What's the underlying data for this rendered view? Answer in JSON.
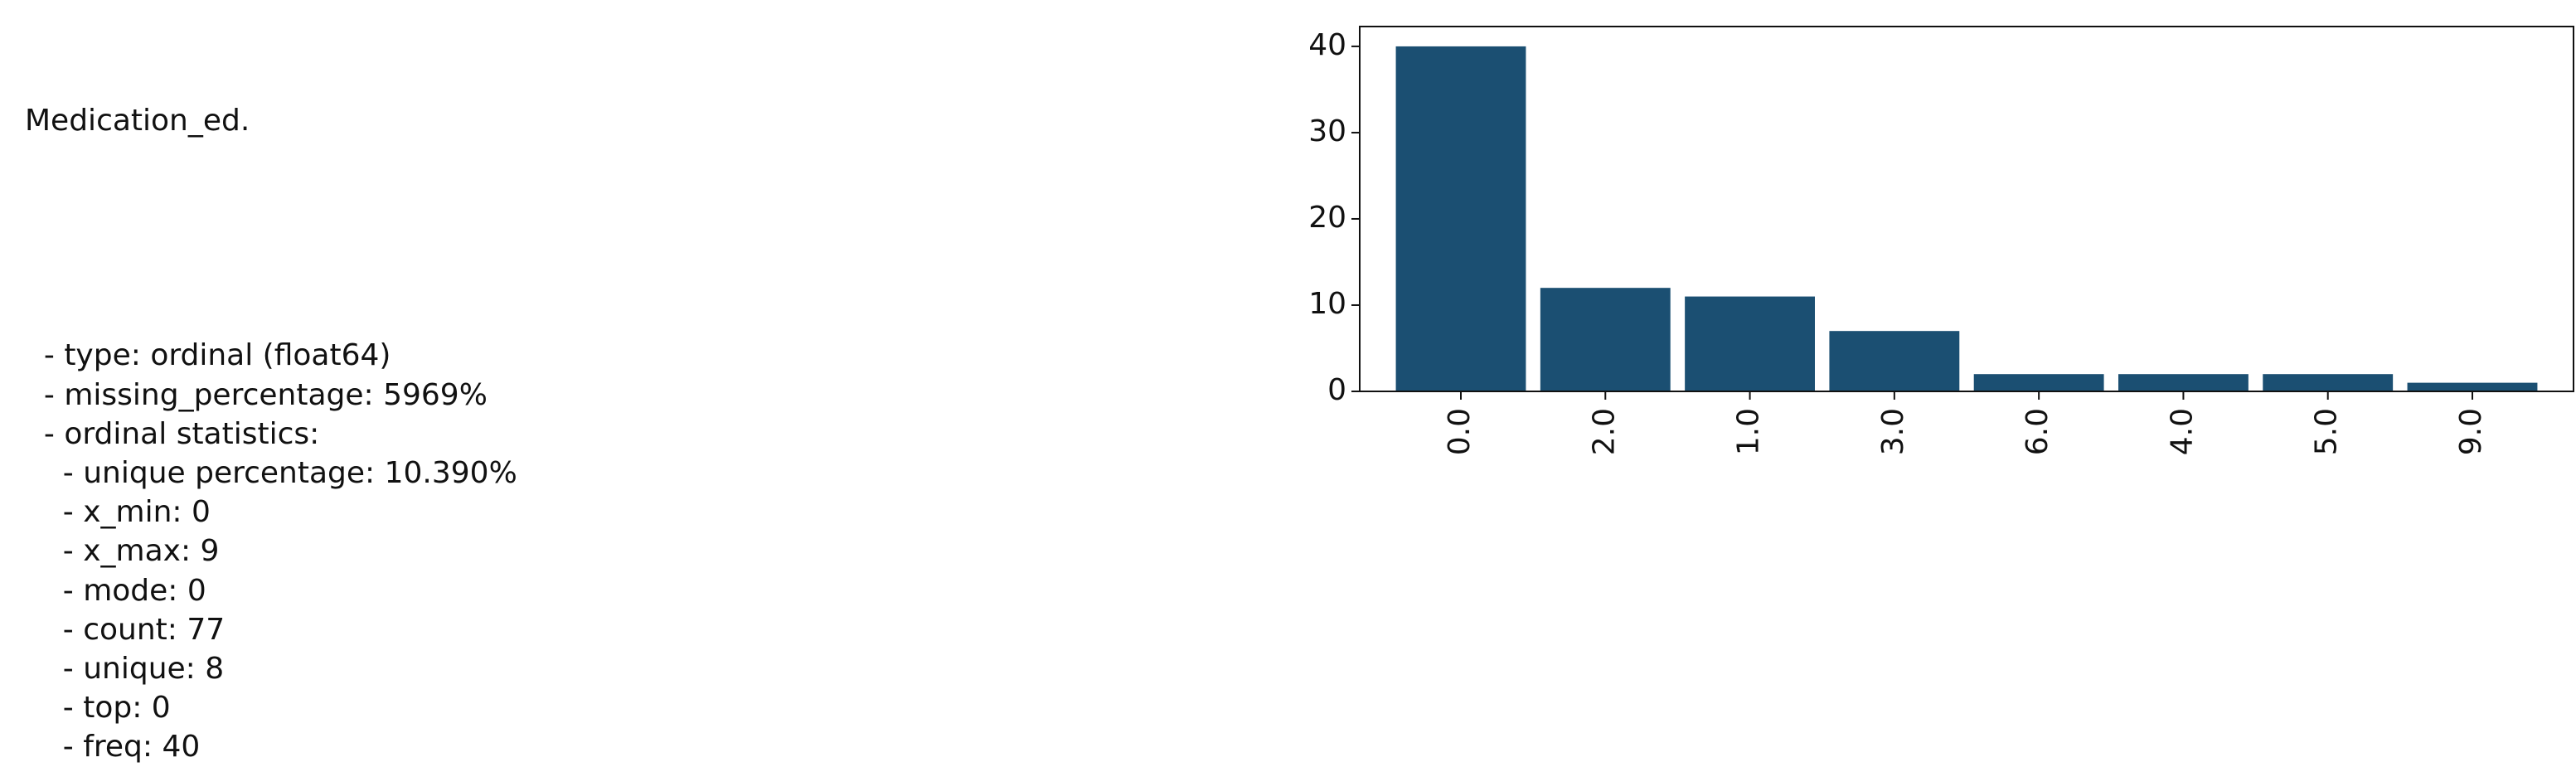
{
  "summary": {
    "title": "Medication_ed.",
    "lines": [
      "  - type: ordinal (float64)",
      "  - missing_percentage: 5969%",
      "  - ordinal statistics:",
      "    - unique percentage: 10.390%",
      "    - x_min: 0",
      "    - x_max: 9",
      "    - mode: 0",
      "    - count: 77",
      "    - unique: 8",
      "    - top: 0",
      "    - freq: 40"
    ]
  },
  "chart_data": {
    "type": "bar",
    "categories": [
      "0.0",
      "2.0",
      "1.0",
      "3.0",
      "6.0",
      "4.0",
      "5.0",
      "9.0"
    ],
    "values": [
      40,
      12,
      11,
      7,
      2,
      2,
      2,
      1
    ],
    "color": "#1b4f72",
    "ylim": [
      0,
      42.3
    ],
    "yticks": [
      0,
      10,
      20,
      30,
      40
    ],
    "grid": false
  }
}
